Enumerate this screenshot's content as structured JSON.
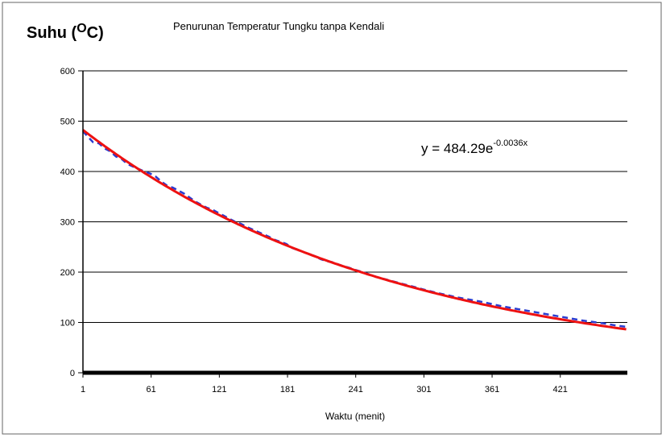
{
  "chart_data": {
    "type": "line",
    "title": "Penurunan Temperatur Tungku tanpa Kendali",
    "ylabel": {
      "main": "Suhu (",
      "superscript": "O",
      "tail": "C)"
    },
    "xlabel": "Waktu (menit)",
    "xlim": [
      1,
      480
    ],
    "ylim": [
      0,
      600
    ],
    "x_ticks": [
      "1",
      "61",
      "121",
      "181",
      "241",
      "301",
      "361",
      "421"
    ],
    "x_tick_values": [
      1,
      61,
      121,
      181,
      241,
      301,
      361,
      421
    ],
    "y_ticks": [
      "0",
      "100",
      "200",
      "300",
      "400",
      "500",
      "600"
    ],
    "y_tick_values": [
      0,
      100,
      200,
      300,
      400,
      500,
      600
    ],
    "grid": "horizontal",
    "trendline_label": {
      "base": "y = 484.29e",
      "exponent": "-0.0036x"
    },
    "series": [
      {
        "kind": "measured",
        "color": "#2a3cd0",
        "style": "dashed",
        "x": [
          1,
          5,
          10,
          15,
          20,
          25,
          30,
          35,
          40,
          45,
          50,
          55,
          60,
          65,
          70,
          75,
          80,
          85,
          90,
          95,
          100,
          105,
          110,
          115,
          120,
          125,
          130,
          135,
          140,
          145,
          150,
          155,
          160,
          165,
          170,
          175,
          180,
          185,
          190,
          195,
          200,
          205,
          210,
          215,
          220,
          225,
          230,
          235,
          240,
          250,
          260,
          270,
          280,
          290,
          300,
          310,
          320,
          330,
          340,
          350,
          360,
          370,
          380,
          390,
          400,
          410,
          420,
          430,
          440,
          450,
          460,
          470,
          480
        ],
        "y": [
          480,
          470,
          458,
          456,
          446,
          440,
          430,
          425,
          415,
          410,
          405,
          400,
          396,
          390,
          380,
          372,
          368,
          362,
          356,
          348,
          340,
          334,
          328,
          324,
          318,
          312,
          306,
          300,
          296,
          290,
          285,
          280,
          275,
          270,
          264,
          260,
          256,
          248,
          244,
          240,
          236,
          232,
          226,
          222,
          220,
          216,
          212,
          209,
          205,
          198,
          190,
          184,
          178,
          172,
          166,
          160,
          155,
          150,
          146,
          142,
          137,
          132,
          128,
          124,
          120,
          116,
          112,
          108,
          104,
          101,
          98,
          94,
          91
        ]
      },
      {
        "kind": "trend",
        "color": "#ee1111",
        "style": "solid",
        "fit": {
          "a": 484.29,
          "b": -0.0036
        }
      }
    ]
  }
}
